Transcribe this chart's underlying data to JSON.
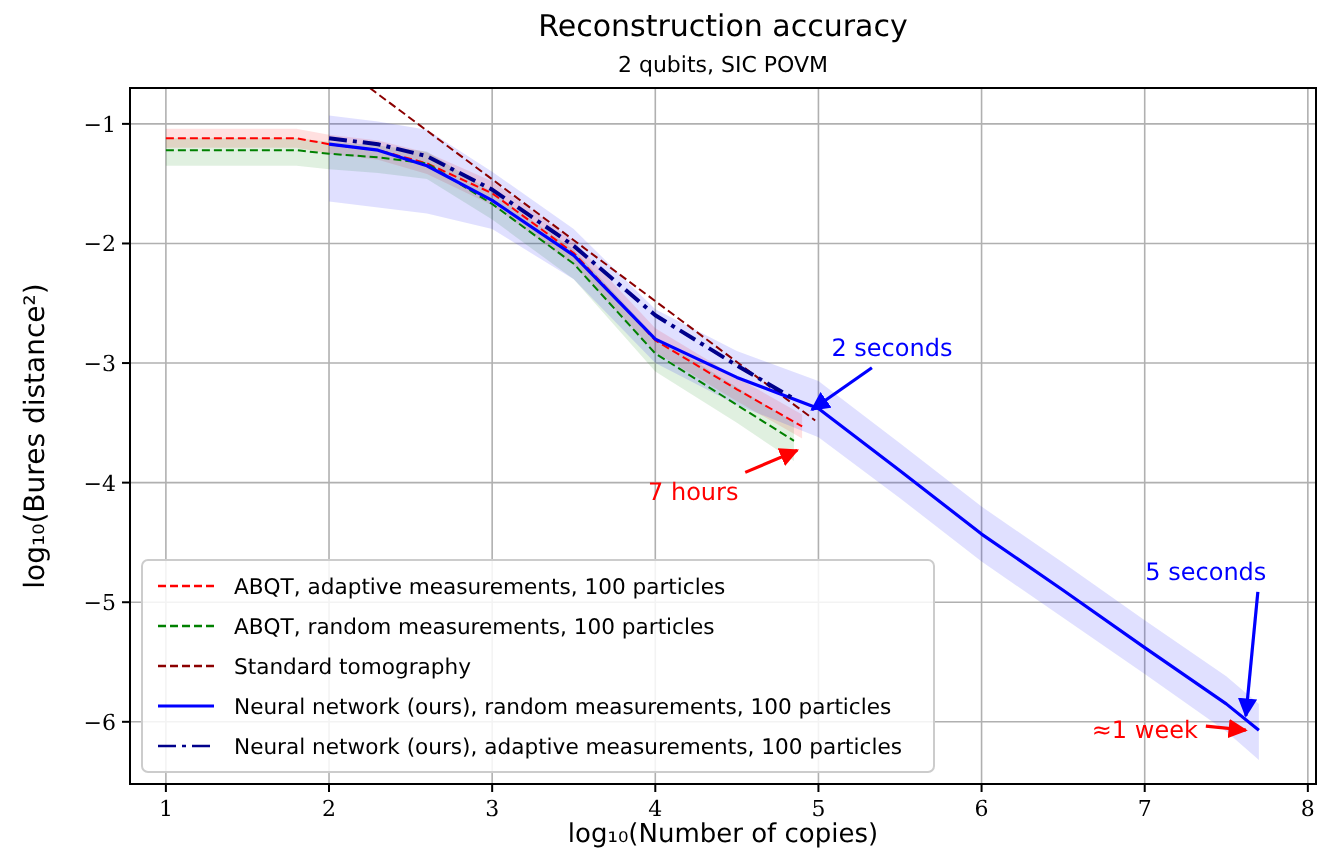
{
  "chart_data": {
    "type": "line",
    "title": "Reconstruction accuracy",
    "subtitle": "2 qubits, SIC POVM",
    "xlabel": "log₁₀(Number of copies)",
    "ylabel": "log₁₀(Bures distance²)",
    "xlim": [
      0.78,
      8.05
    ],
    "ylim": [
      -6.52,
      -0.7
    ],
    "xticks": [
      1,
      2,
      3,
      4,
      5,
      6,
      7,
      8
    ],
    "yticks": [
      -1,
      -2,
      -3,
      -4,
      -5,
      -6
    ],
    "grid": true,
    "legend": "bottom left",
    "series": [
      {
        "name": "ABQT, adaptive measurements, 100 particles",
        "color": "#ff0000",
        "line_style": "dashed",
        "x": [
          1,
          1.5,
          1.8,
          2,
          2.3,
          2.6,
          3,
          3.5,
          4,
          4.5,
          4.9
        ],
        "values": [
          -1.12,
          -1.12,
          -1.12,
          -1.17,
          -1.22,
          -1.33,
          -1.58,
          -2.08,
          -2.81,
          -3.22,
          -3.53
        ],
        "lower": [
          -1.2,
          -1.2,
          -1.2,
          -1.25,
          -1.3,
          -1.42,
          -1.68,
          -2.18,
          -2.91,
          -3.32,
          -3.63
        ],
        "upper": [
          -1.04,
          -1.04,
          -1.04,
          -1.09,
          -1.14,
          -1.24,
          -1.48,
          -1.98,
          -2.71,
          -3.12,
          -3.43
        ]
      },
      {
        "name": "ABQT, random measurements, 100 particles",
        "color": "#008000",
        "line_style": "dashed",
        "x": [
          1,
          1.5,
          1.8,
          2,
          2.3,
          2.6,
          3,
          3.5,
          4,
          4.5,
          4.85
        ],
        "values": [
          -1.22,
          -1.22,
          -1.22,
          -1.25,
          -1.28,
          -1.33,
          -1.67,
          -2.17,
          -2.92,
          -3.35,
          -3.65
        ],
        "lower": [
          -1.35,
          -1.35,
          -1.35,
          -1.38,
          -1.41,
          -1.46,
          -1.8,
          -2.3,
          -3.07,
          -3.5,
          -3.82
        ],
        "upper": [
          -1.12,
          -1.12,
          -1.12,
          -1.15,
          -1.18,
          -1.23,
          -1.57,
          -2.05,
          -2.78,
          -3.2,
          -3.5
        ]
      },
      {
        "name": "Standard tomography",
        "color": "#8b0000",
        "line_style": "dashed",
        "x": [
          2.25,
          4.98
        ],
        "values": [
          -0.7,
          -3.48
        ]
      },
      {
        "name": "Neural network (ours), random measurements, 100 particles",
        "color": "#0000ff",
        "line_style": "solid",
        "x": [
          2,
          2.3,
          2.6,
          3,
          3.5,
          4,
          4.5,
          5,
          5.5,
          6,
          6.5,
          7,
          7.5,
          7.7
        ],
        "values": [
          -1.17,
          -1.22,
          -1.35,
          -1.64,
          -2.1,
          -2.8,
          -3.12,
          -3.38,
          -3.9,
          -4.43,
          -4.9,
          -5.38,
          -5.85,
          -6.07
        ],
        "lower": [
          -1.65,
          -1.7,
          -1.75,
          -1.88,
          -2.3,
          -3.0,
          -3.35,
          -3.62,
          -4.13,
          -4.66,
          -5.13,
          -5.6,
          -6.08,
          -6.32
        ],
        "upper": [
          -0.93,
          -0.98,
          -1.05,
          -1.4,
          -1.88,
          -2.55,
          -2.9,
          -3.15,
          -3.67,
          -4.2,
          -4.67,
          -5.15,
          -5.62,
          -5.85
        ]
      },
      {
        "name": "Neural network (ours), adaptive measurements, 100 particles",
        "color": "#00008b",
        "line_style": "dashdot",
        "x": [
          2,
          2.3,
          2.6,
          3,
          3.5,
          4,
          4.5,
          4.85
        ],
        "values": [
          -1.12,
          -1.17,
          -1.27,
          -1.55,
          -2.02,
          -2.6,
          -3.02,
          -3.3
        ]
      }
    ],
    "annotations": [
      {
        "text": "7 hours",
        "x": 4.87,
        "y": -3.73
      },
      {
        "text": "2 seconds",
        "x": 4.96,
        "y": -3.39
      },
      {
        "text": "5 seconds",
        "x": 7.62,
        "y": -5.95
      },
      {
        "text": "≈1 week",
        "x": 7.62,
        "y": -6.07
      }
    ]
  }
}
